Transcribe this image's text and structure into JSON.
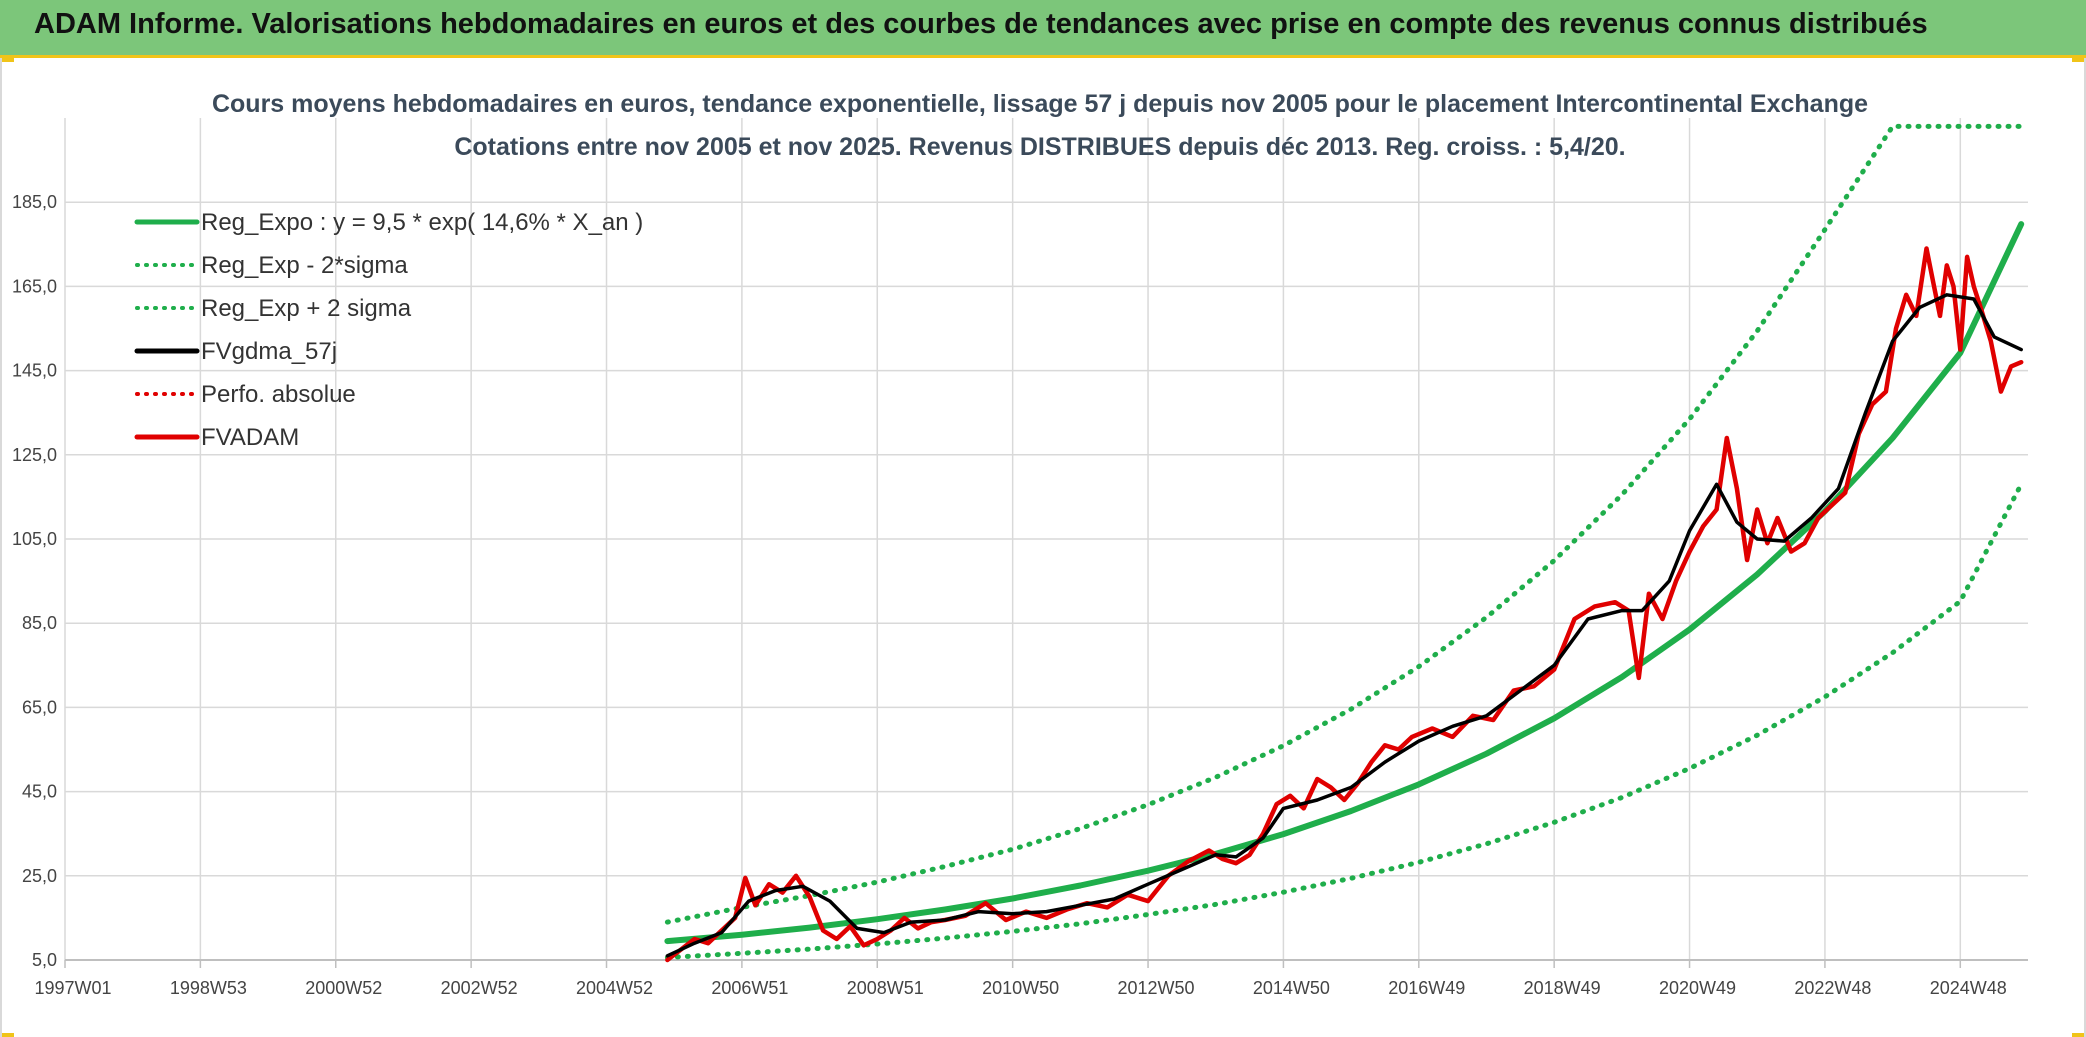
{
  "banner": {
    "title": "ADAM Informe. Valorisations hebdomadaires en euros et des courbes de tendances avec prise en compte des revenus connus distribués"
  },
  "colors": {
    "banner_bg": "#7cc67a",
    "reg_expo": "#1fae4b",
    "sigma": "#1fae4b",
    "fvgdma": "#000000",
    "perfo": "#e00000",
    "fvadam": "#e00000",
    "grid": "#d9d9d9"
  },
  "chart_data": {
    "type": "line",
    "title": "Cours moyens hebdomadaires en euros, tendance exponentielle, lissage 57 j depuis nov 2005 pour le placement Intercontinental Exchange",
    "subtitle": "Cotations entre nov 2005 et nov 2025. Revenus DISTRIBUES depuis déc 2013. Reg. croiss. : 5,4/20.",
    "xlabel": "",
    "ylabel": "",
    "ylim": [
      5,
      205
    ],
    "yticks": [
      "5,0",
      "25,0",
      "45,0",
      "65,0",
      "85,0",
      "105,0",
      "125,0",
      "145,0",
      "165,0",
      "185,0"
    ],
    "yticks_values": [
      5,
      25,
      45,
      65,
      85,
      105,
      125,
      145,
      165,
      185
    ],
    "xlim": [
      1997.0,
      2026.0
    ],
    "xticks": [
      "1997W01",
      "1998W53",
      "2000W52",
      "2002W52",
      "2004W52",
      "2006W51",
      "2008W51",
      "2010W50",
      "2012W50",
      "2014W50",
      "2016W49",
      "2018W49",
      "2020W49",
      "2022W48",
      "2024W48"
    ],
    "xticks_values": [
      1997.0,
      1999.0,
      2001.0,
      2003.0,
      2005.0,
      2007.0,
      2009.0,
      2011.0,
      2013.0,
      2015.0,
      2017.0,
      2019.0,
      2021.0,
      2023.0,
      2025.0
    ],
    "grid": true,
    "legend_position": "top-left",
    "legend": [
      {
        "label": "Reg_Expo : y = 9,5 * exp( 14,6% *  X_an )",
        "style": "solid",
        "color": "#1fae4b"
      },
      {
        "label": "Reg_Exp - 2*sigma",
        "style": "dotted",
        "color": "#1fae4b"
      },
      {
        "label": "Reg_Exp + 2 sigma",
        "style": "dotted",
        "color": "#1fae4b"
      },
      {
        "label": "FVgdma_57j",
        "style": "solid",
        "color": "#000000"
      },
      {
        "label": "Perfo. absolue",
        "style": "dotted",
        "color": "#e00000"
      },
      {
        "label": "FVADAM",
        "style": "solid",
        "color": "#e00000"
      }
    ],
    "series": [
      {
        "key": "reg_expo",
        "x": [
          2005.9,
          2007,
          2008,
          2009,
          2010,
          2011,
          2012,
          2013,
          2014,
          2015,
          2016,
          2017,
          2018,
          2019,
          2020,
          2021,
          2022,
          2023,
          2024,
          2025,
          2025.9
        ],
        "values": [
          9.5,
          11.0,
          12.7,
          14.7,
          17.0,
          19.6,
          22.7,
          26.2,
          30.2,
          34.9,
          40.4,
          46.7,
          54.0,
          62.4,
          72.2,
          83.5,
          96.6,
          111.6,
          129.0,
          149.2,
          179.8
        ]
      },
      {
        "key": "reg_minus",
        "x": [
          2005.9,
          2007,
          2008,
          2009,
          2010,
          2011,
          2012,
          2013,
          2014,
          2015,
          2016,
          2017,
          2018,
          2019,
          2020,
          2021,
          2022,
          2023,
          2024,
          2025,
          2025.9
        ],
        "values": [
          5.6,
          6.6,
          7.6,
          8.8,
          10.2,
          11.8,
          13.6,
          15.8,
          18.2,
          21.1,
          24.4,
          28.2,
          32.6,
          37.7,
          43.6,
          50.5,
          58.4,
          67.5,
          78.0,
          90.2,
          118.0
        ]
      },
      {
        "key": "reg_plus",
        "x": [
          2005.9,
          2007,
          2008,
          2009,
          2010,
          2011,
          2012,
          2013,
          2014,
          2015,
          2016,
          2017,
          2018,
          2019,
          2020,
          2021,
          2022,
          2023,
          2024,
          2025,
          2025.9
        ],
        "values": [
          14.0,
          17.5,
          20.3,
          23.5,
          27.2,
          31.3,
          36.2,
          41.9,
          48.4,
          55.9,
          64.6,
          74.7,
          86.4,
          99.9,
          115.5,
          133.5,
          154.4,
          178.5,
          203.0,
          203.0,
          203.0
        ]
      },
      {
        "key": "fvgdma",
        "x": [
          2005.9,
          2006.3,
          2006.7,
          2007.1,
          2007.5,
          2007.9,
          2008.3,
          2008.7,
          2009.1,
          2009.5,
          2010.0,
          2010.5,
          2011.0,
          2011.5,
          2012.0,
          2012.5,
          2013.0,
          2013.5,
          2014.0,
          2014.3,
          2014.7,
          2015.0,
          2015.5,
          2016.0,
          2016.5,
          2017.0,
          2017.5,
          2018.0,
          2018.5,
          2019.0,
          2019.5,
          2020.0,
          2020.3,
          2020.7,
          2021.0,
          2021.4,
          2021.7,
          2022.0,
          2022.4,
          2022.8,
          2023.2,
          2023.6,
          2024.0,
          2024.4,
          2024.8,
          2025.2,
          2025.5,
          2025.9
        ],
        "values": [
          6.0,
          9.0,
          11.5,
          19.0,
          21.5,
          22.5,
          19.0,
          12.5,
          11.5,
          14.0,
          14.5,
          16.5,
          16.0,
          16.5,
          18.0,
          19.5,
          23.0,
          26.5,
          30.0,
          29.5,
          34.0,
          41.0,
          43.0,
          46.0,
          52.0,
          57.0,
          60.5,
          63.0,
          69.0,
          75.0,
          86.0,
          88.0,
          88.0,
          95.0,
          107.0,
          118.0,
          109.0,
          105.0,
          104.5,
          110.0,
          117.0,
          135.0,
          152.0,
          160.0,
          163.0,
          162.0,
          153.0,
          150.0
        ]
      },
      {
        "key": "fvadam",
        "x": [
          2005.9,
          2006.1,
          2006.3,
          2006.5,
          2006.7,
          2006.9,
          2007.05,
          2007.2,
          2007.4,
          2007.6,
          2007.8,
          2008.0,
          2008.2,
          2008.4,
          2008.6,
          2008.8,
          2009.0,
          2009.2,
          2009.4,
          2009.6,
          2009.8,
          2010.0,
          2010.3,
          2010.6,
          2010.9,
          2011.2,
          2011.5,
          2011.8,
          2012.1,
          2012.4,
          2012.7,
          2013.0,
          2013.3,
          2013.6,
          2013.9,
          2014.1,
          2014.3,
          2014.5,
          2014.7,
          2014.9,
          2015.1,
          2015.3,
          2015.5,
          2015.7,
          2015.9,
          2016.1,
          2016.3,
          2016.5,
          2016.7,
          2016.9,
          2017.2,
          2017.5,
          2017.8,
          2018.1,
          2018.4,
          2018.7,
          2019.0,
          2019.3,
          2019.6,
          2019.9,
          2020.1,
          2020.25,
          2020.4,
          2020.6,
          2020.8,
          2021.0,
          2021.2,
          2021.4,
          2021.55,
          2021.7,
          2021.85,
          2022.0,
          2022.15,
          2022.3,
          2022.5,
          2022.7,
          2022.9,
          2023.1,
          2023.3,
          2023.5,
          2023.7,
          2023.9,
          2024.05,
          2024.2,
          2024.35,
          2024.5,
          2024.6,
          2024.7,
          2024.8,
          2024.9,
          2025.0,
          2025.1,
          2025.2,
          2025.3,
          2025.45,
          2025.6,
          2025.75,
          2025.9
        ],
        "values": [
          5.0,
          7.5,
          10.0,
          9.0,
          12.0,
          15.0,
          24.5,
          18.0,
          23.0,
          21.0,
          25.0,
          20.0,
          12.0,
          10.0,
          13.0,
          8.5,
          10.0,
          12.0,
          15.0,
          12.5,
          14.0,
          14.5,
          15.5,
          18.5,
          14.5,
          16.5,
          15.0,
          17.0,
          18.5,
          17.5,
          20.5,
          19.0,
          25.0,
          28.5,
          31.0,
          29.0,
          28.0,
          30.0,
          35.0,
          42.0,
          44.0,
          41.0,
          48.0,
          46.0,
          43.0,
          47.0,
          52.0,
          56.0,
          55.0,
          58.0,
          60.0,
          58.0,
          63.0,
          62.0,
          69.0,
          70.0,
          74.0,
          86.0,
          89.0,
          90.0,
          88.0,
          72.0,
          92.0,
          86.0,
          95.0,
          102.0,
          108.0,
          112.0,
          129.0,
          117.0,
          100.0,
          112.0,
          104.0,
          110.0,
          102.0,
          104.0,
          110.0,
          113.0,
          116.0,
          130.0,
          137.0,
          140.0,
          155.0,
          163.0,
          158.0,
          174.0,
          166.0,
          158.0,
          170.0,
          165.0,
          150.0,
          172.0,
          165.0,
          160.0,
          152.0,
          140.0,
          146.0,
          147.0
        ]
      }
    ]
  }
}
